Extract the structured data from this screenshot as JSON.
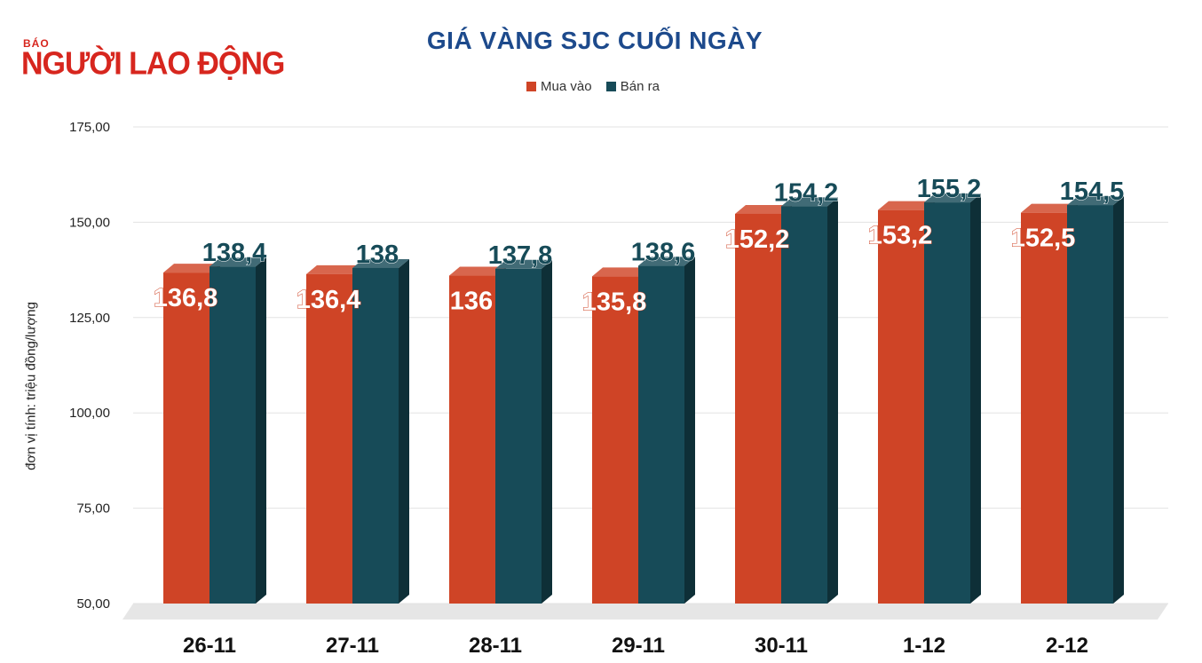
{
  "logo": {
    "small": "BÁO",
    "main": "NGƯỜI LAO ĐỘNG"
  },
  "chart_data": {
    "type": "bar",
    "title": "GIÁ VÀNG SJC CUỐI NGÀY",
    "ylabel": "đơn vị tính: triệu đồng/lượng",
    "xlabel": "",
    "categories": [
      "26-11",
      "27-11",
      "28-11",
      "29-11",
      "30-11",
      "1-12",
      "2-12"
    ],
    "series": [
      {
        "name": "Mua vào",
        "color": "#cf4426",
        "values": [
          136.8,
          136.4,
          136,
          135.8,
          152.2,
          153.2,
          152.5
        ],
        "labels": [
          "136,8",
          "136,4",
          "136",
          "135,8",
          "152,2",
          "153,2",
          "152,5"
        ]
      },
      {
        "name": "Bán ra",
        "color": "#174b58",
        "values": [
          138.4,
          138,
          137.8,
          138.6,
          154.2,
          155.2,
          154.5
        ],
        "labels": [
          "138,4",
          "138",
          "137,8",
          "138,6",
          "154,2",
          "155,2",
          "154,5"
        ]
      }
    ],
    "ylim": [
      50,
      175
    ],
    "yticks": [
      "50,00",
      "75,00",
      "100,00",
      "125,00",
      "150,00",
      "175,00"
    ],
    "grid": true,
    "legend_position": "top-center"
  }
}
